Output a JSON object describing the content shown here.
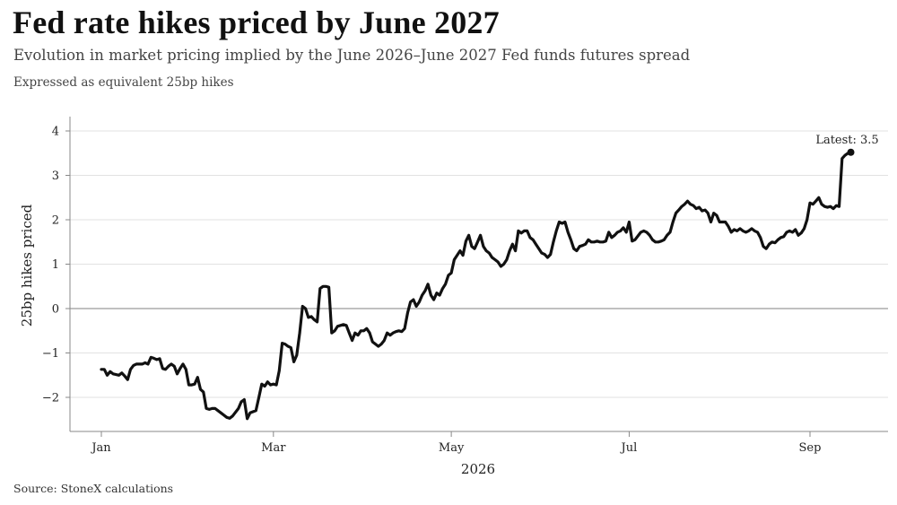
{
  "title": "Fed rate hikes priced by June 2027",
  "subtitle": "Evolution in market pricing implied by the June 2026–June 2027 Fed funds futures spread",
  "note": "Expressed as equivalent 25bp hikes",
  "source": "Source: StoneX calculations",
  "chart_data": {
    "type": "line",
    "xlabel": "2026",
    "ylabel": "25bp hikes priced",
    "ylim": [
      -2.75,
      4.3
    ],
    "xlim": [
      "2026-01-01",
      "2026-09-30"
    ],
    "yticks": [
      4,
      3,
      2,
      1,
      0,
      -1,
      -2
    ],
    "ytick_labels": [
      "4",
      "3",
      "2",
      "1",
      "0",
      "−1",
      "−2"
    ],
    "xticks": [
      {
        "date": "2026-01-01",
        "label": "Jan"
      },
      {
        "date": "2026-03-01",
        "label": "Mar"
      },
      {
        "date": "2026-05-01",
        "label": "May"
      },
      {
        "date": "2026-07-01",
        "label": "Jul"
      },
      {
        "date": "2026-09-01",
        "label": "Sep"
      }
    ],
    "grid": true,
    "zero_line": true,
    "colors": {
      "line": "#111111",
      "grid": "#e2e2e2",
      "zero": "#9a9a9a",
      "axis": "#888888"
    },
    "annotation": {
      "text": "Latest: 3.5",
      "date": "2026-09-15",
      "value": 3.52
    },
    "series": [
      {
        "x": [
          "2026-01-01",
          "2026-01-02",
          "2026-01-03",
          "2026-01-04",
          "2026-01-05",
          "2026-01-07",
          "2026-01-08",
          "2026-01-09",
          "2026-01-10",
          "2026-01-11",
          "2026-01-12",
          "2026-01-13",
          "2026-01-15",
          "2026-01-16",
          "2026-01-17",
          "2026-01-18",
          "2026-01-19",
          "2026-01-20",
          "2026-01-21",
          "2026-01-22",
          "2026-01-23",
          "2026-01-24",
          "2026-01-25",
          "2026-01-26",
          "2026-01-27",
          "2026-01-28",
          "2026-01-29",
          "2026-01-30",
          "2026-01-31",
          "2026-02-01",
          "2026-02-02",
          "2026-02-03",
          "2026-02-04",
          "2026-02-05",
          "2026-02-06",
          "2026-02-07",
          "2026-02-08",
          "2026-02-09",
          "2026-02-10",
          "2026-02-11",
          "2026-02-12",
          "2026-02-13",
          "2026-02-14",
          "2026-02-15",
          "2026-02-17",
          "2026-02-18",
          "2026-02-19",
          "2026-02-20",
          "2026-02-21",
          "2026-02-23",
          "2026-02-24",
          "2026-02-25",
          "2026-02-26",
          "2026-02-27",
          "2026-02-28",
          "2026-03-01",
          "2026-03-02",
          "2026-03-03",
          "2026-03-04",
          "2026-03-05",
          "2026-03-06",
          "2026-03-07",
          "2026-03-08",
          "2026-03-09",
          "2026-03-10",
          "2026-03-11",
          "2026-03-12",
          "2026-03-13",
          "2026-03-14",
          "2026-03-15",
          "2026-03-16",
          "2026-03-17",
          "2026-03-18",
          "2026-03-19",
          "2026-03-20",
          "2026-03-21",
          "2026-03-22",
          "2026-03-23",
          "2026-03-24",
          "2026-03-25",
          "2026-03-26",
          "2026-03-27",
          "2026-03-28",
          "2026-03-29",
          "2026-03-30",
          "2026-03-31",
          "2026-04-01",
          "2026-04-02",
          "2026-04-03",
          "2026-04-04",
          "2026-04-05",
          "2026-04-06",
          "2026-04-07",
          "2026-04-08",
          "2026-04-09",
          "2026-04-10",
          "2026-04-11",
          "2026-04-12",
          "2026-04-13",
          "2026-04-14",
          "2026-04-15",
          "2026-04-16",
          "2026-04-17",
          "2026-04-18",
          "2026-04-19",
          "2026-04-20",
          "2026-04-21",
          "2026-04-22",
          "2026-04-23",
          "2026-04-24",
          "2026-04-25",
          "2026-04-26",
          "2026-04-27",
          "2026-04-28",
          "2026-04-29",
          "2026-04-30",
          "2026-05-01",
          "2026-05-02",
          "2026-05-03",
          "2026-05-04",
          "2026-05-05",
          "2026-05-06",
          "2026-05-07",
          "2026-05-08",
          "2026-05-09",
          "2026-05-10",
          "2026-05-11",
          "2026-05-12",
          "2026-05-13",
          "2026-05-14",
          "2026-05-15",
          "2026-05-16",
          "2026-05-17",
          "2026-05-18",
          "2026-05-19",
          "2026-05-20",
          "2026-05-21",
          "2026-05-22",
          "2026-05-23",
          "2026-05-24",
          "2026-05-25",
          "2026-05-26",
          "2026-05-27",
          "2026-05-28",
          "2026-05-29",
          "2026-05-30",
          "2026-05-31",
          "2026-06-01",
          "2026-06-02",
          "2026-06-03",
          "2026-06-04",
          "2026-06-05",
          "2026-06-06",
          "2026-06-07",
          "2026-06-08",
          "2026-06-09",
          "2026-06-10",
          "2026-06-11",
          "2026-06-12",
          "2026-06-13",
          "2026-06-14",
          "2026-06-15",
          "2026-06-16",
          "2026-06-17",
          "2026-06-18",
          "2026-06-19",
          "2026-06-20",
          "2026-06-21",
          "2026-06-22",
          "2026-06-23",
          "2026-06-24",
          "2026-06-25",
          "2026-06-26",
          "2026-06-27",
          "2026-06-28",
          "2026-06-29",
          "2026-06-30",
          "2026-07-01",
          "2026-07-02",
          "2026-07-03",
          "2026-07-05",
          "2026-07-06",
          "2026-07-07",
          "2026-07-08",
          "2026-07-09",
          "2026-07-10",
          "2026-07-11",
          "2026-07-12",
          "2026-07-13",
          "2026-07-14",
          "2026-07-15",
          "2026-07-16",
          "2026-07-17",
          "2026-07-18",
          "2026-07-19",
          "2026-07-20",
          "2026-07-21",
          "2026-07-22",
          "2026-07-23",
          "2026-07-24",
          "2026-07-25",
          "2026-07-26",
          "2026-07-27",
          "2026-07-28",
          "2026-07-29",
          "2026-07-30",
          "2026-07-31",
          "2026-08-01",
          "2026-08-02",
          "2026-08-03",
          "2026-08-04",
          "2026-08-05",
          "2026-08-06",
          "2026-08-07",
          "2026-08-08",
          "2026-08-09",
          "2026-08-10",
          "2026-08-11",
          "2026-08-12",
          "2026-08-13",
          "2026-08-14",
          "2026-08-15",
          "2026-08-16",
          "2026-08-17",
          "2026-08-18",
          "2026-08-19",
          "2026-08-20",
          "2026-08-21",
          "2026-08-22",
          "2026-08-23",
          "2026-08-24",
          "2026-08-25",
          "2026-08-26",
          "2026-08-27",
          "2026-08-28",
          "2026-08-29",
          "2026-08-30",
          "2026-08-31",
          "2026-09-01",
          "2026-09-02",
          "2026-09-03",
          "2026-09-04",
          "2026-09-05",
          "2026-09-06",
          "2026-09-07",
          "2026-09-08",
          "2026-09-09",
          "2026-09-10",
          "2026-09-11",
          "2026-09-12",
          "2026-09-13",
          "2026-09-14",
          "2026-09-15"
        ],
        "y": [
          -1.37,
          -1.37,
          -1.5,
          -1.42,
          -1.47,
          -1.5,
          -1.45,
          -1.52,
          -1.6,
          -1.37,
          -1.28,
          -1.25,
          -1.25,
          -1.22,
          -1.25,
          -1.1,
          -1.12,
          -1.15,
          -1.13,
          -1.35,
          -1.37,
          -1.3,
          -1.25,
          -1.3,
          -1.47,
          -1.35,
          -1.25,
          -1.37,
          -1.72,
          -1.72,
          -1.7,
          -1.55,
          -1.82,
          -1.88,
          -2.25,
          -2.27,
          -2.25,
          -2.25,
          -2.3,
          -2.35,
          -2.4,
          -2.45,
          -2.47,
          -2.42,
          -2.25,
          -2.1,
          -2.05,
          -2.48,
          -2.35,
          -2.3,
          -2.0,
          -1.7,
          -1.75,
          -1.65,
          -1.72,
          -1.7,
          -1.72,
          -1.4,
          -0.78,
          -0.8,
          -0.85,
          -0.88,
          -1.2,
          -1.05,
          -0.55,
          0.05,
          0.0,
          -0.2,
          -0.18,
          -0.25,
          -0.3,
          0.45,
          0.5,
          0.5,
          0.48,
          -0.55,
          -0.5,
          -0.4,
          -0.38,
          -0.36,
          -0.38,
          -0.55,
          -0.72,
          -0.55,
          -0.6,
          -0.5,
          -0.5,
          -0.45,
          -0.55,
          -0.75,
          -0.8,
          -0.85,
          -0.8,
          -0.72,
          -0.55,
          -0.6,
          -0.55,
          -0.52,
          -0.5,
          -0.52,
          -0.45,
          -0.1,
          0.15,
          0.2,
          0.05,
          0.15,
          0.3,
          0.4,
          0.55,
          0.3,
          0.2,
          0.35,
          0.3,
          0.45,
          0.55,
          0.75,
          0.8,
          1.1,
          1.2,
          1.3,
          1.2,
          1.52,
          1.65,
          1.4,
          1.35,
          1.5,
          1.65,
          1.4,
          1.3,
          1.25,
          1.15,
          1.1,
          1.05,
          0.95,
          1.0,
          1.1,
          1.3,
          1.45,
          1.3,
          1.75,
          1.7,
          1.75,
          1.75,
          1.6,
          1.55,
          1.45,
          1.35,
          1.25,
          1.22,
          1.15,
          1.22,
          1.5,
          1.75,
          1.95,
          1.92,
          1.95,
          1.72,
          1.55,
          1.35,
          1.3,
          1.4,
          1.42,
          1.45,
          1.55,
          1.5,
          1.5,
          1.52,
          1.5,
          1.5,
          1.52,
          1.72,
          1.6,
          1.65,
          1.72,
          1.75,
          1.82,
          1.72,
          1.95,
          1.52,
          1.55,
          1.72,
          1.75,
          1.72,
          1.65,
          1.55,
          1.5,
          1.5,
          1.52,
          1.55,
          1.65,
          1.72,
          1.95,
          2.15,
          2.22,
          2.3,
          2.35,
          2.42,
          2.35,
          2.32,
          2.25,
          2.28,
          2.2,
          2.22,
          2.15,
          1.95,
          2.15,
          2.1,
          1.95,
          1.95,
          1.95,
          1.85,
          1.72,
          1.78,
          1.75,
          1.8,
          1.75,
          1.72,
          1.75,
          1.8,
          1.75,
          1.72,
          1.6,
          1.4,
          1.35,
          1.45,
          1.5,
          1.48,
          1.55,
          1.6,
          1.62,
          1.72,
          1.75,
          1.72,
          1.78,
          1.65,
          1.7,
          1.8,
          2.0,
          2.38,
          2.35,
          2.42,
          2.5,
          2.35,
          2.3,
          2.28,
          2.3,
          2.25,
          2.32,
          2.3,
          3.38,
          3.45,
          3.5,
          3.52
        ]
      }
    ]
  }
}
